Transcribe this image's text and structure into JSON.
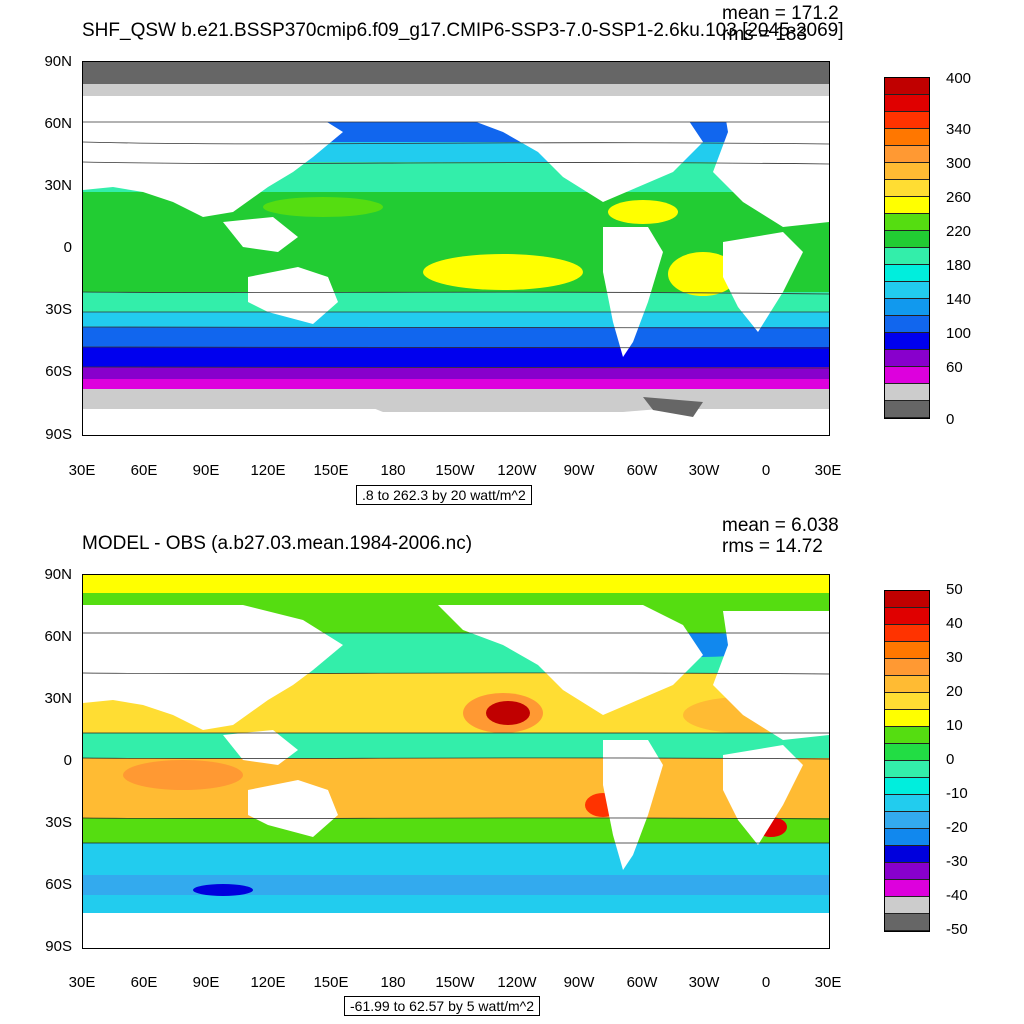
{
  "top": {
    "title": "SHF_QSW b.e21.BSSP370cmip6.f09_g17.CMIP6-SSP3-7.0-SSP1-2.6ku.103 [2045-2069]",
    "mean": "mean = 171.2",
    "rms": "rms = 183",
    "range": ".8 to 262.3 by 20 watt/m^2",
    "y_ticks": [
      "90N",
      "60N",
      "30N",
      "0",
      "30S",
      "60S",
      "90S"
    ],
    "x_ticks": [
      "30E",
      "60E",
      "90E",
      "120E",
      "150E",
      "180",
      "150W",
      "120W",
      "90W",
      "60W",
      "30W",
      "0",
      "30E"
    ],
    "colorbar": {
      "labels": [
        "400",
        "340",
        "300",
        "260",
        "220",
        "180",
        "140",
        "100",
        "60",
        "0"
      ],
      "colors": [
        "#c00000",
        "#e00000",
        "#ff3300",
        "#ff7700",
        "#ff9933",
        "#ffbb33",
        "#ffdd33",
        "#ffff00",
        "#55dd11",
        "#22cc33",
        "#33eeaa",
        "#00eedd",
        "#22ccee",
        "#1199ee",
        "#1166ee",
        "#0000ee",
        "#8800cc",
        "#dd00dd",
        "#cccccc",
        "#666666"
      ]
    }
  },
  "bottom": {
    "title": "MODEL - OBS (a.b27.03.mean.1984-2006.nc)",
    "mean": "mean = 6.038",
    "rms": "rms = 14.72",
    "range": "-61.99 to 62.57 by 5 watt/m^2",
    "y_ticks": [
      "90N",
      "60N",
      "30N",
      "0",
      "30S",
      "60S",
      "90S"
    ],
    "x_ticks": [
      "30E",
      "60E",
      "90E",
      "120E",
      "150E",
      "180",
      "150W",
      "120W",
      "90W",
      "60W",
      "30W",
      "0",
      "30E"
    ],
    "colorbar": {
      "labels": [
        "50",
        "40",
        "30",
        "20",
        "10",
        "0",
        "-10",
        "-20",
        "-30",
        "-40",
        "-50"
      ],
      "colors": [
        "#c00000",
        "#e00000",
        "#ff3300",
        "#ff7700",
        "#ff9933",
        "#ffbb33",
        "#ffdd33",
        "#ffff00",
        "#55dd11",
        "#22dd44",
        "#33eeaa",
        "#00eedd",
        "#22ccee",
        "#33aaee",
        "#1188ee",
        "#0000dd",
        "#8800cc",
        "#dd00dd",
        "#cccccc",
        "#666666"
      ]
    }
  }
}
